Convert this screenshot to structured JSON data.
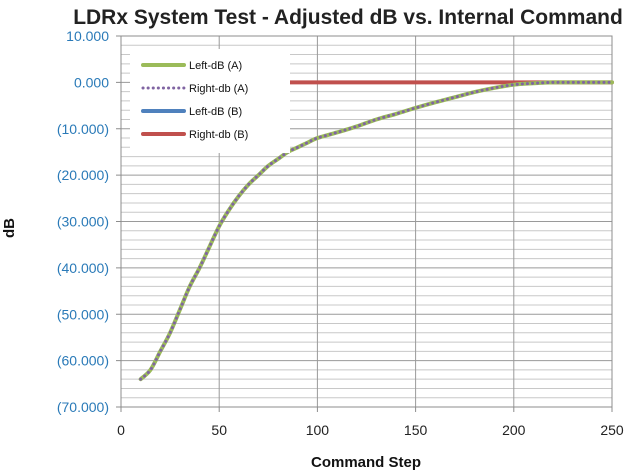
{
  "chart_data": {
    "type": "line",
    "title": "LDRx System Test - Adjusted dB vs. Internal Command",
    "xlabel": "Command Step",
    "ylabel": "dB",
    "xlim": [
      0,
      250
    ],
    "ylim": [
      -70,
      10
    ],
    "x_ticks": [
      0,
      50,
      100,
      150,
      200,
      250
    ],
    "x_tick_labels": [
      "0",
      "50",
      "100",
      "150",
      "200",
      "250"
    ],
    "y_ticks": [
      10,
      0,
      -10,
      -20,
      -30,
      -40,
      -50,
      -60,
      -70
    ],
    "y_tick_labels": [
      "10.000",
      "0.000",
      "(10.000)",
      "(20.000)",
      "(30.000)",
      "(40.000)",
      "(50.000)",
      "(60.000)",
      "(70.000)"
    ],
    "grid": "major vertical, minor horizontal",
    "legend_position": "top-left",
    "series": [
      {
        "name": "Left-dB (A)",
        "color": "#9bbb59",
        "style": "solid",
        "x": [
          10,
          15,
          20,
          25,
          30,
          35,
          40,
          45,
          50,
          55,
          60,
          65,
          70,
          75,
          80,
          85,
          90,
          95,
          100,
          110,
          120,
          130,
          140,
          150,
          160,
          170,
          180,
          190,
          200,
          210,
          220,
          230,
          240,
          250
        ],
        "y": [
          -64,
          -62,
          -58,
          -54,
          -49,
          -44,
          -40,
          -35.5,
          -31,
          -27.5,
          -24.5,
          -22,
          -20,
          -18,
          -16.5,
          -15,
          -14,
          -13,
          -12,
          -10.8,
          -9.5,
          -8,
          -6.8,
          -5.5,
          -4.3,
          -3.2,
          -2.1,
          -1.2,
          -0.5,
          -0.2,
          0,
          0,
          0,
          0
        ]
      },
      {
        "name": "Right-db (A)",
        "color": "#8064a2",
        "style": "dotted",
        "x": [
          10,
          15,
          20,
          25,
          30,
          35,
          40,
          45,
          50,
          55,
          60,
          65,
          70,
          75,
          80,
          85,
          90,
          95,
          100,
          110,
          120,
          130,
          140,
          150,
          160,
          170,
          180,
          190,
          200,
          210,
          220,
          230,
          240,
          250
        ],
        "y": [
          -64,
          -62,
          -58,
          -54,
          -49,
          -44,
          -40,
          -35.5,
          -31,
          -27.5,
          -24.5,
          -22,
          -20,
          -18,
          -16.5,
          -15,
          -14,
          -13,
          -12,
          -10.8,
          -9.5,
          -8,
          -6.8,
          -5.5,
          -4.3,
          -3.2,
          -2.1,
          -1.2,
          -0.5,
          -0.2,
          0,
          0,
          0,
          0
        ]
      },
      {
        "name": "Left-dB (B)",
        "color": "#4f81bd",
        "style": "solid",
        "x": [],
        "y": []
      },
      {
        "name": "Right-db (B)",
        "color": "#c0504d",
        "style": "solid",
        "x": [
          84,
          250
        ],
        "y": [
          0,
          0
        ]
      }
    ]
  }
}
